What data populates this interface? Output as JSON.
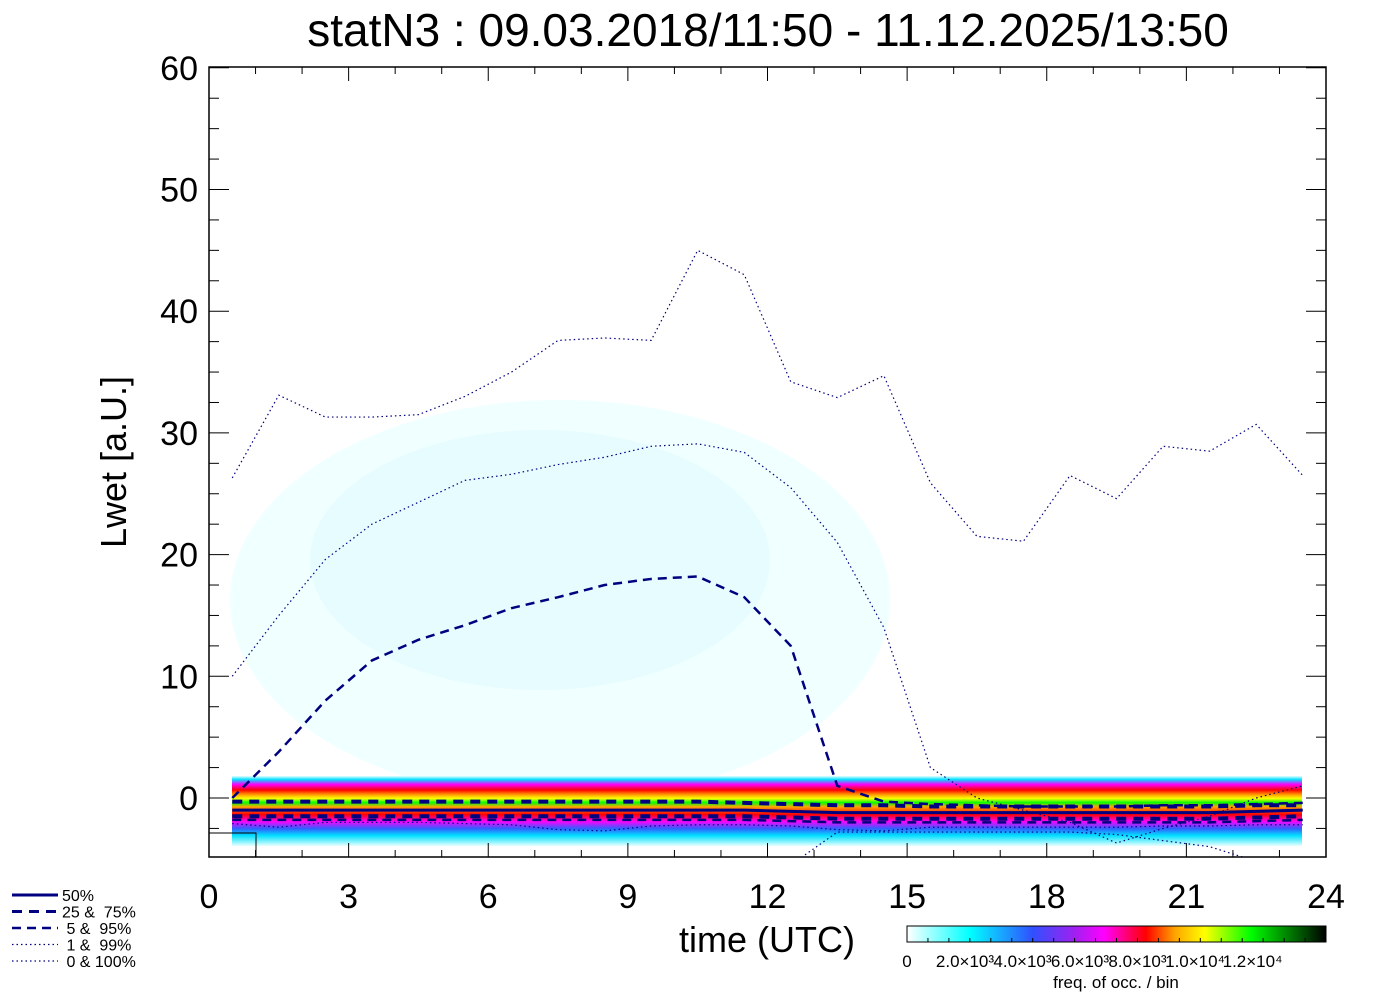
{
  "chart_data": {
    "type": "line",
    "title": "statN3 : 09.03.2018/11:50 - 11.12.2025/13:50",
    "xlabel": "time (UTC)",
    "ylabel": "Lwet [a.U.]",
    "xlim": [
      0,
      24
    ],
    "ylim": [
      -5,
      60.8
    ],
    "xticks": [
      "0",
      "3",
      "6",
      "9",
      "12",
      "15",
      "18",
      "21",
      "24"
    ],
    "yticks": [
      "0",
      "10",
      "20",
      "30",
      "40",
      "50",
      "60"
    ],
    "x": [
      0.5,
      1.5,
      2.5,
      3.5,
      4.5,
      5.5,
      6.5,
      7.5,
      8.5,
      9.5,
      10.5,
      11.5,
      12.5,
      13.5,
      14.5,
      15.5,
      16.5,
      17.5,
      18.5,
      19.5,
      20.5,
      21.5,
      22.5,
      23.5
    ],
    "series": [
      {
        "name": "100%",
        "style": "dotted",
        "values": [
          26.3,
          33.1,
          31.3,
          31.3,
          31.5,
          33,
          35,
          37.6,
          37.8,
          37.6,
          45,
          43,
          34.2,
          32.9,
          34.7,
          25.9,
          21.5,
          21.1,
          26.5,
          24.6,
          28.9,
          28.5,
          30.7,
          26.5
        ]
      },
      {
        "name": "99%",
        "style": "dotted",
        "values": [
          10,
          15,
          19.6,
          22.5,
          24.3,
          26.1,
          26.6,
          27.4,
          28,
          28.9,
          29.1,
          28.4,
          25.5,
          21,
          14,
          2.5,
          0,
          -1,
          -2,
          -3.7,
          -2.5,
          -1.5,
          0,
          1
        ]
      },
      {
        "name": "95%",
        "style": "dashed",
        "values": [
          0,
          3.8,
          8,
          11.3,
          13,
          14.2,
          15.6,
          16.5,
          17.5,
          18,
          18.2,
          16.5,
          12.5,
          1,
          -0.3,
          -0.5,
          -0.6,
          -0.7,
          -0.7,
          -0.7,
          -0.6,
          -0.6,
          -0.5,
          -0.4
        ]
      },
      {
        "name": "75%",
        "style": "dashed-thick",
        "values": [
          -0.3,
          -0.3,
          -0.3,
          -0.3,
          -0.3,
          -0.3,
          -0.3,
          -0.3,
          -0.3,
          -0.3,
          -0.3,
          -0.4,
          -0.5,
          -0.6,
          -0.6,
          -0.7,
          -0.7,
          -0.7,
          -0.7,
          -0.7,
          -0.7,
          -0.7,
          -0.6,
          -0.6
        ]
      },
      {
        "name": "50%",
        "style": "solid",
        "values": [
          -1,
          -1,
          -1,
          -1,
          -1,
          -1,
          -1,
          -1,
          -1,
          -1,
          -1,
          -1,
          -1.1,
          -1.2,
          -1.2,
          -1.2,
          -1.2,
          -1.2,
          -1.2,
          -1.2,
          -1.2,
          -1.2,
          -1.1,
          -1
        ]
      },
      {
        "name": "25%",
        "style": "dashed-thick",
        "values": [
          -1.5,
          -1.5,
          -1.5,
          -1.5,
          -1.5,
          -1.5,
          -1.5,
          -1.5,
          -1.5,
          -1.5,
          -1.5,
          -1.5,
          -1.6,
          -1.7,
          -1.7,
          -1.7,
          -1.7,
          -1.7,
          -1.7,
          -1.7,
          -1.7,
          -1.7,
          -1.6,
          -1.5
        ]
      },
      {
        "name": "5%",
        "style": "dashed",
        "values": [
          -1.8,
          -1.8,
          -1.8,
          -1.8,
          -1.8,
          -1.8,
          -1.8,
          -1.8,
          -1.8,
          -1.8,
          -1.8,
          -1.8,
          -1.9,
          -2.0,
          -2.0,
          -2.0,
          -2.0,
          -2.0,
          -2.0,
          -2.0,
          -2.0,
          -2.0,
          -1.9,
          -1.8
        ]
      },
      {
        "name": "1%",
        "style": "dotted",
        "values": [
          -2.1,
          -2.4,
          -2.0,
          -2.0,
          -2.0,
          -2.1,
          -2.2,
          -2.6,
          -2.7,
          -2.3,
          -2.2,
          -2.2,
          -2.3,
          -2.6,
          -2.7,
          -2.4,
          -2.4,
          -2.4,
          -2.4,
          -2.4,
          -2.3,
          -2.3,
          -2.2,
          -2.2
        ]
      },
      {
        "name": "0%",
        "style": "dotted",
        "values": [
          -8,
          -8,
          -8,
          -8,
          -8,
          -8,
          -8,
          -8,
          -8,
          -8,
          -8,
          -8,
          -5.5,
          -2.8,
          -2.8,
          -2.8,
          -2.8,
          -2.8,
          -2.8,
          -3,
          -3.5,
          -4,
          -5.2,
          -7
        ]
      }
    ],
    "legend": [
      "50%",
      "25 &  75%",
      " 5 &  95%",
      " 1 &  99%",
      " 0 & 100%"
    ],
    "legend_placement": "bottom-left",
    "colorbar": {
      "label": "freq. of occ. / bin",
      "ticks": [
        "0",
        "2.0×10³",
        "4.0×10³",
        "6.0×10³",
        "8.0×10³",
        "1.0×10⁴",
        "1.2×10⁴"
      ],
      "colors": [
        "#ffffff",
        "#00ffff",
        "#3060ff",
        "#a020f0",
        "#ff00ff",
        "#ff0000",
        "#ffa500",
        "#ffff00",
        "#00ff00",
        "#000000"
      ]
    }
  }
}
